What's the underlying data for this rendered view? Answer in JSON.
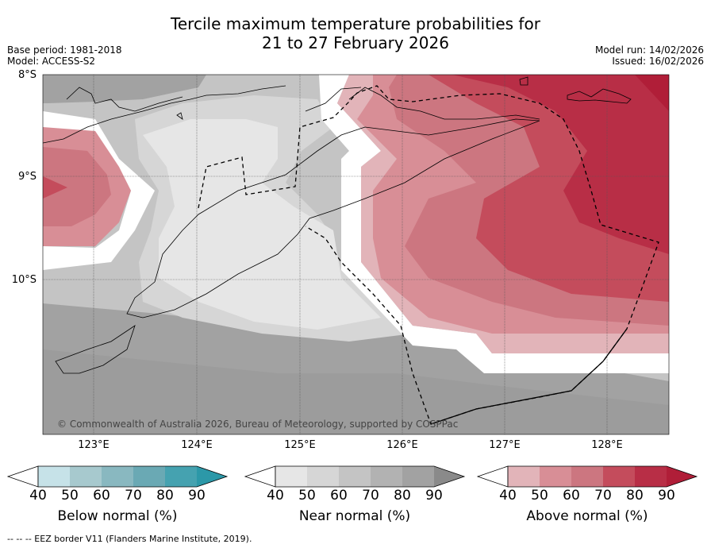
{
  "title_line1": "Tercile maximum temperature probabilities for",
  "title_line2": "21 to 27 February 2026",
  "base_period": "Base period: 1981-2018",
  "model": "Model: ACCESS-S2",
  "model_run": "Model run: 14/02/2026",
  "issued": "Issued: 16/02/2026",
  "map": {
    "lat_labels": [
      "8°S",
      "9°S",
      "10°S"
    ],
    "lon_labels": [
      "123°E",
      "124°E",
      "125°E",
      "126°E",
      "127°E",
      "128°E"
    ],
    "copyright": "© Commonwealth of Australia 2026, Bureau of Meteorology, supported by COSPPac"
  },
  "legends": [
    {
      "title": "Below normal (%)",
      "ticks": [
        "40",
        "50",
        "60",
        "70",
        "80",
        "90"
      ],
      "colors": [
        "#c6e2e8",
        "#a7c9ce",
        "#89b8c0",
        "#6aa9b4",
        "#45a2b0",
        "#2c98a8"
      ]
    },
    {
      "title": "Near normal (%)",
      "ticks": [
        "40",
        "50",
        "60",
        "70",
        "80",
        "90"
      ],
      "colors": [
        "#e6e6e6",
        "#d6d6d6",
        "#c4c4c4",
        "#b2b2b2",
        "#a2a2a2",
        "#8a8a8a"
      ]
    },
    {
      "title": "Above normal (%)",
      "ticks": [
        "40",
        "50",
        "60",
        "70",
        "80",
        "90"
      ],
      "colors": [
        "#e2b4b9",
        "#d88e96",
        "#cc7680",
        "#c44c5c",
        "#b82e46",
        "#b01e38"
      ]
    }
  ],
  "footer": "--  --  -- EEZ border V11 (Flanders Marine Institute, 2019)."
}
